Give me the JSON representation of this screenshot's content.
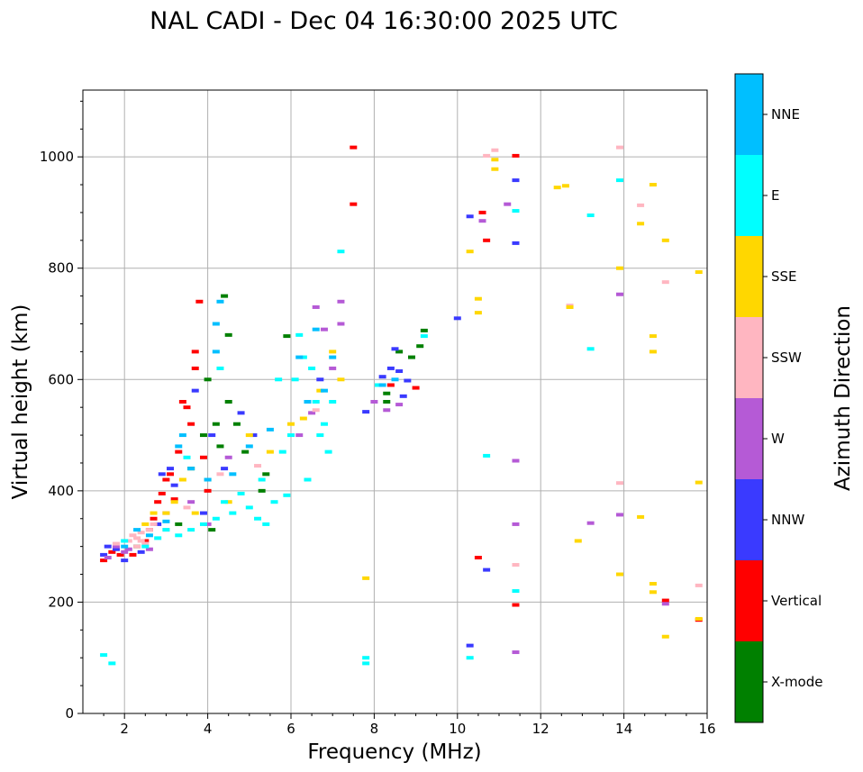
{
  "chart_data": {
    "type": "scatter",
    "title": "NAL CADI - Dec 04 16:30:00 2025 UTC",
    "xlabel": "Frequency (MHz)",
    "ylabel": "Virtual height (km)",
    "xlim": [
      1,
      16
    ],
    "ylim": [
      0,
      1120
    ],
    "xticks": [
      2,
      4,
      6,
      8,
      10,
      12,
      14,
      16
    ],
    "yticks": [
      0,
      200,
      400,
      600,
      800,
      1000
    ],
    "grid": true,
    "colorbar": {
      "label": "Azimuth Direction",
      "categories": [
        {
          "name": "X-mode",
          "color": "#008000"
        },
        {
          "name": "Vertical",
          "color": "#ff0000"
        },
        {
          "name": "NNW",
          "color": "#3a3aff"
        },
        {
          "name": "W",
          "color": "#b55ad6"
        },
        {
          "name": "SSW",
          "color": "#ffb6c1"
        },
        {
          "name": "SSE",
          "color": "#ffd700"
        },
        {
          "name": "E",
          "color": "#00ffff"
        },
        {
          "name": "NNE",
          "color": "#00bfff"
        }
      ]
    },
    "echoes": [
      {
        "name": "Vertical",
        "points": [
          [
            1.5,
            275
          ],
          [
            1.7,
            290
          ],
          [
            1.9,
            285
          ],
          [
            2.2,
            285
          ],
          [
            2.5,
            310
          ],
          [
            2.7,
            350
          ],
          [
            2.8,
            380
          ],
          [
            2.9,
            395
          ],
          [
            3.0,
            420
          ],
          [
            3.1,
            430
          ],
          [
            3.3,
            470
          ],
          [
            3.4,
            560
          ],
          [
            3.5,
            550
          ],
          [
            3.6,
            520
          ],
          [
            3.7,
            620
          ],
          [
            3.7,
            650
          ],
          [
            3.8,
            740
          ],
          [
            3.9,
            460
          ],
          [
            4.0,
            400
          ],
          [
            7.5,
            915
          ],
          [
            7.5,
            1017
          ],
          [
            10.6,
            900
          ],
          [
            10.7,
            850
          ],
          [
            11.4,
            1002
          ],
          [
            10.5,
            280
          ],
          [
            11.4,
            195
          ],
          [
            15.0,
            203
          ],
          [
            15.8,
            168
          ],
          [
            9.0,
            585
          ],
          [
            8.4,
            590
          ],
          [
            3.2,
            385
          ],
          [
            2.6,
            330
          ]
        ]
      },
      {
        "name": "X-mode",
        "points": [
          [
            2.3,
            300
          ],
          [
            3.6,
            440
          ],
          [
            3.9,
            500
          ],
          [
            4.1,
            330
          ],
          [
            4.2,
            520
          ],
          [
            4.3,
            480
          ],
          [
            4.4,
            750
          ],
          [
            4.5,
            680
          ],
          [
            4.5,
            560
          ],
          [
            4.9,
            470
          ],
          [
            5.3,
            400
          ],
          [
            5.4,
            430
          ],
          [
            5.9,
            678
          ],
          [
            8.3,
            560
          ],
          [
            8.6,
            650
          ],
          [
            8.9,
            640
          ],
          [
            9.1,
            660
          ],
          [
            9.2,
            688
          ],
          [
            8.3,
            575
          ],
          [
            4.7,
            520
          ],
          [
            4.0,
            600
          ],
          [
            3.3,
            340
          ]
        ]
      },
      {
        "name": "NNW",
        "points": [
          [
            1.5,
            285
          ],
          [
            1.6,
            300
          ],
          [
            1.8,
            295
          ],
          [
            2.0,
            275
          ],
          [
            2.4,
            290
          ],
          [
            2.8,
            340
          ],
          [
            2.9,
            430
          ],
          [
            3.1,
            440
          ],
          [
            3.2,
            410
          ],
          [
            3.7,
            580
          ],
          [
            3.9,
            360
          ],
          [
            4.1,
            500
          ],
          [
            4.4,
            440
          ],
          [
            4.8,
            540
          ],
          [
            5.1,
            500
          ],
          [
            6.7,
            600
          ],
          [
            7.8,
            542
          ],
          [
            8.2,
            605
          ],
          [
            8.5,
            655
          ],
          [
            8.6,
            615
          ],
          [
            8.8,
            598
          ],
          [
            10.0,
            710
          ],
          [
            10.3,
            122
          ],
          [
            10.7,
            258
          ],
          [
            11.4,
            958
          ],
          [
            11.4,
            845
          ],
          [
            10.3,
            893
          ],
          [
            8.4,
            620
          ],
          [
            8.7,
            570
          ]
        ]
      },
      {
        "name": "W",
        "points": [
          [
            1.6,
            280
          ],
          [
            1.8,
            300
          ],
          [
            2.0,
            290
          ],
          [
            2.1,
            295
          ],
          [
            2.6,
            295
          ],
          [
            3.0,
            360
          ],
          [
            3.6,
            380
          ],
          [
            4.0,
            340
          ],
          [
            4.5,
            460
          ],
          [
            6.2,
            500
          ],
          [
            6.5,
            540
          ],
          [
            6.6,
            730
          ],
          [
            6.8,
            690
          ],
          [
            7.0,
            620
          ],
          [
            7.2,
            740
          ],
          [
            7.2,
            700
          ],
          [
            8.3,
            545
          ],
          [
            8.6,
            555
          ],
          [
            10.6,
            885
          ],
          [
            11.2,
            915
          ],
          [
            11.4,
            454
          ],
          [
            11.4,
            340
          ],
          [
            11.4,
            110
          ],
          [
            13.2,
            342
          ],
          [
            13.9,
            357
          ],
          [
            13.9,
            753
          ],
          [
            15.0,
            197
          ],
          [
            8.0,
            560
          ]
        ]
      },
      {
        "name": "SSW",
        "points": [
          [
            1.8,
            305
          ],
          [
            2.1,
            310
          ],
          [
            2.2,
            320
          ],
          [
            2.3,
            300
          ],
          [
            2.4,
            310
          ],
          [
            2.5,
            305
          ],
          [
            2.6,
            330
          ],
          [
            2.7,
            340
          ],
          [
            3.0,
            330
          ],
          [
            3.5,
            370
          ],
          [
            4.3,
            430
          ],
          [
            5.2,
            445
          ],
          [
            6.6,
            545
          ],
          [
            10.7,
            1002
          ],
          [
            10.9,
            1012
          ],
          [
            11.4,
            267
          ],
          [
            12.7,
            733
          ],
          [
            13.9,
            1017
          ],
          [
            13.9,
            414
          ],
          [
            14.4,
            913
          ],
          [
            15.0,
            775
          ],
          [
            15.8,
            230
          ],
          [
            2.3,
            315
          ],
          [
            2.4,
            325
          ]
        ]
      },
      {
        "name": "SSE",
        "points": [
          [
            2.5,
            340
          ],
          [
            2.7,
            360
          ],
          [
            3.0,
            360
          ],
          [
            3.2,
            380
          ],
          [
            3.4,
            420
          ],
          [
            3.7,
            360
          ],
          [
            4.0,
            420
          ],
          [
            4.5,
            380
          ],
          [
            5.0,
            500
          ],
          [
            5.5,
            470
          ],
          [
            6.0,
            520
          ],
          [
            6.3,
            530
          ],
          [
            6.7,
            580
          ],
          [
            7.0,
            650
          ],
          [
            7.2,
            600
          ],
          [
            7.8,
            243
          ],
          [
            10.3,
            830
          ],
          [
            10.5,
            745
          ],
          [
            10.5,
            720
          ],
          [
            10.9,
            995
          ],
          [
            10.9,
            978
          ],
          [
            12.4,
            945
          ],
          [
            12.6,
            948
          ],
          [
            12.7,
            730
          ],
          [
            12.9,
            310
          ],
          [
            13.9,
            800
          ],
          [
            13.9,
            250
          ],
          [
            14.4,
            880
          ],
          [
            14.4,
            353
          ],
          [
            14.7,
            950
          ],
          [
            14.7,
            678
          ],
          [
            14.7,
            650
          ],
          [
            14.7,
            233
          ],
          [
            14.7,
            218
          ],
          [
            15.0,
            850
          ],
          [
            15.0,
            138
          ],
          [
            15.8,
            793
          ],
          [
            15.8,
            415
          ],
          [
            15.8,
            170
          ]
        ]
      },
      {
        "name": "E",
        "points": [
          [
            1.5,
            105
          ],
          [
            1.7,
            90
          ],
          [
            2.0,
            310
          ],
          [
            2.5,
            300
          ],
          [
            2.8,
            315
          ],
          [
            3.0,
            330
          ],
          [
            3.3,
            320
          ],
          [
            3.6,
            330
          ],
          [
            3.9,
            340
          ],
          [
            4.2,
            350
          ],
          [
            4.4,
            380
          ],
          [
            4.6,
            360
          ],
          [
            4.8,
            395
          ],
          [
            5.0,
            370
          ],
          [
            5.2,
            350
          ],
          [
            5.4,
            340
          ],
          [
            5.6,
            380
          ],
          [
            5.8,
            470
          ],
          [
            5.9,
            392
          ],
          [
            6.0,
            500
          ],
          [
            6.1,
            600
          ],
          [
            6.2,
            680
          ],
          [
            6.3,
            640
          ],
          [
            6.5,
            620
          ],
          [
            6.6,
            560
          ],
          [
            6.7,
            500
          ],
          [
            6.9,
            470
          ],
          [
            7.0,
            560
          ],
          [
            7.2,
            830
          ],
          [
            7.8,
            100
          ],
          [
            7.8,
            90
          ],
          [
            8.1,
            590
          ],
          [
            9.2,
            678
          ],
          [
            10.3,
            100
          ],
          [
            10.7,
            463
          ],
          [
            11.4,
            903
          ],
          [
            11.4,
            220
          ],
          [
            13.2,
            895
          ],
          [
            13.2,
            655
          ],
          [
            13.9,
            958
          ],
          [
            6.4,
            420
          ],
          [
            5.3,
            420
          ],
          [
            3.5,
            460
          ],
          [
            4.3,
            620
          ],
          [
            5.7,
            600
          ],
          [
            6.8,
            520
          ]
        ]
      },
      {
        "name": "NNE",
        "points": [
          [
            2.0,
            300
          ],
          [
            2.3,
            330
          ],
          [
            2.6,
            320
          ],
          [
            3.0,
            345
          ],
          [
            3.3,
            480
          ],
          [
            3.4,
            500
          ],
          [
            3.6,
            440
          ],
          [
            4.0,
            420
          ],
          [
            4.2,
            650
          ],
          [
            4.3,
            740
          ],
          [
            4.6,
            430
          ],
          [
            5.0,
            480
          ],
          [
            5.5,
            510
          ],
          [
            6.2,
            640
          ],
          [
            6.4,
            560
          ],
          [
            6.6,
            690
          ],
          [
            6.8,
            580
          ],
          [
            7.0,
            640
          ],
          [
            8.2,
            590
          ],
          [
            8.5,
            600
          ],
          [
            4.2,
            700
          ]
        ]
      }
    ]
  }
}
